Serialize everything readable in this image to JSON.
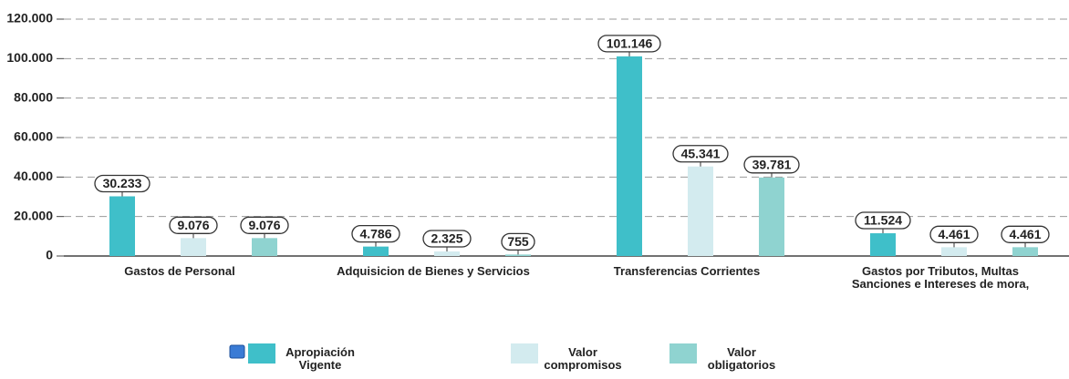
{
  "chart_data": {
    "type": "bar",
    "categories": [
      "Gastos de Personal",
      "Adquisicion de Bienes y Servicios",
      "Transferencias Corrientes",
      "Gastos por Tributos, Multas Sanciones e Intereses de mora,"
    ],
    "series": [
      {
        "name": "Apropiación Vigente",
        "color": "#3fbfc9",
        "values": [
          30233,
          4786,
          101146,
          11524
        ],
        "value_labels": [
          "30.233",
          "4.786",
          "101.146",
          "11.524"
        ]
      },
      {
        "name": "Valor compromisos",
        "color": "#d3ebef",
        "values": [
          9076,
          2325,
          45341,
          4461
        ],
        "value_labels": [
          "9.076",
          "2.325",
          "45.341",
          "4.461"
        ]
      },
      {
        "name": "Valor obligatorios",
        "color": "#8fd3d0",
        "values": [
          9076,
          755,
          39781,
          4461
        ],
        "value_labels": [
          "9.076",
          "755",
          "39.781",
          "4.461"
        ]
      }
    ],
    "ylim": [
      0,
      120000
    ],
    "yticks": [
      0,
      {
        "value": 20000,
        "label": "20.000"
      },
      {
        "value": 40000,
        "label": "40.000"
      },
      {
        "value": 60000,
        "label": "60.000"
      },
      {
        "value": 80000,
        "label": "80.000"
      },
      {
        "value": 100000,
        "label": "100.000"
      },
      {
        "value": 120000,
        "label": "120.000"
      }
    ],
    "grid": true,
    "legend": "bottom"
  }
}
